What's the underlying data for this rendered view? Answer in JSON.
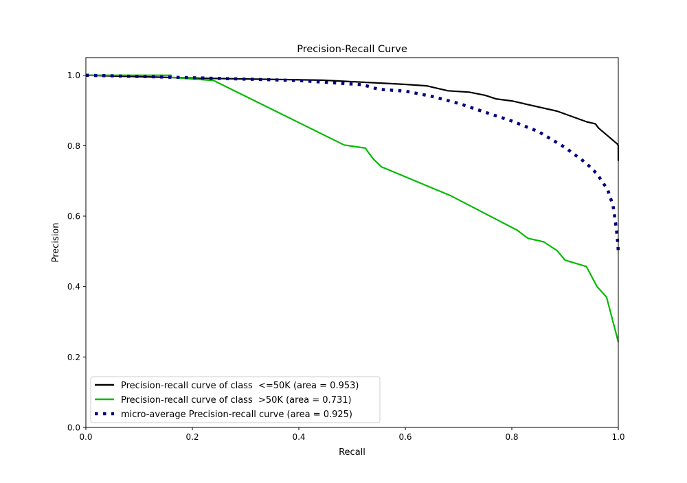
{
  "chart_data": {
    "type": "line",
    "title": "Precision-Recall Curve",
    "xlabel": "Recall",
    "ylabel": "Precision",
    "xlim": [
      0,
      1.0
    ],
    "ylim": [
      0,
      1.05
    ],
    "xticks": [
      "0.0",
      "0.2",
      "0.4",
      "0.6",
      "0.8",
      "1.0"
    ],
    "yticks": [
      "0.0",
      "0.2",
      "0.4",
      "0.6",
      "0.8",
      "1.0"
    ],
    "grid": false,
    "legend_position": "lower-left",
    "series": [
      {
        "name": "Precision-recall curve of class  <=50K (area = 0.953)",
        "color": "#000000",
        "style": "solid",
        "x": [
          0,
          0.2,
          0.445,
          0.535,
          0.6,
          0.64,
          0.68,
          0.72,
          0.75,
          0.77,
          0.8,
          0.885,
          0.94,
          0.957,
          0.963,
          0.998,
          1.0,
          1.0
        ],
        "y": [
          1.0,
          0.992,
          0.986,
          0.979,
          0.974,
          0.97,
          0.956,
          0.952,
          0.943,
          0.933,
          0.927,
          0.898,
          0.868,
          0.862,
          0.85,
          0.805,
          0.8,
          0.757
        ]
      },
      {
        "name": "Precision-recall curve of class  >50K (area = 0.731)",
        "color": "#00bb00",
        "style": "solid",
        "x": [
          0,
          0.16,
          0.16,
          0.24,
          0.485,
          0.525,
          0.53,
          0.54,
          0.555,
          0.685,
          0.81,
          0.83,
          0.86,
          0.885,
          0.9,
          0.94,
          0.96,
          0.978,
          1.0
        ],
        "y": [
          1.0,
          1.0,
          0.994,
          0.985,
          0.802,
          0.793,
          0.782,
          0.762,
          0.74,
          0.658,
          0.56,
          0.537,
          0.527,
          0.502,
          0.475,
          0.457,
          0.4,
          0.37,
          0.243
        ]
      },
      {
        "name": "micro-average Precision-recall curve (area = 0.925)",
        "color": "#000080",
        "style": "dotted",
        "x": [
          0,
          0.2,
          0.4,
          0.52,
          0.55,
          0.6,
          0.65,
          0.7,
          0.75,
          0.8,
          0.85,
          0.9,
          0.94,
          0.96,
          0.98,
          0.99,
          0.995,
          0.998,
          1.0
        ],
        "y": [
          1.0,
          0.993,
          0.985,
          0.973,
          0.96,
          0.955,
          0.94,
          0.92,
          0.895,
          0.87,
          0.84,
          0.795,
          0.75,
          0.72,
          0.675,
          0.63,
          0.58,
          0.54,
          0.5
        ]
      }
    ]
  }
}
